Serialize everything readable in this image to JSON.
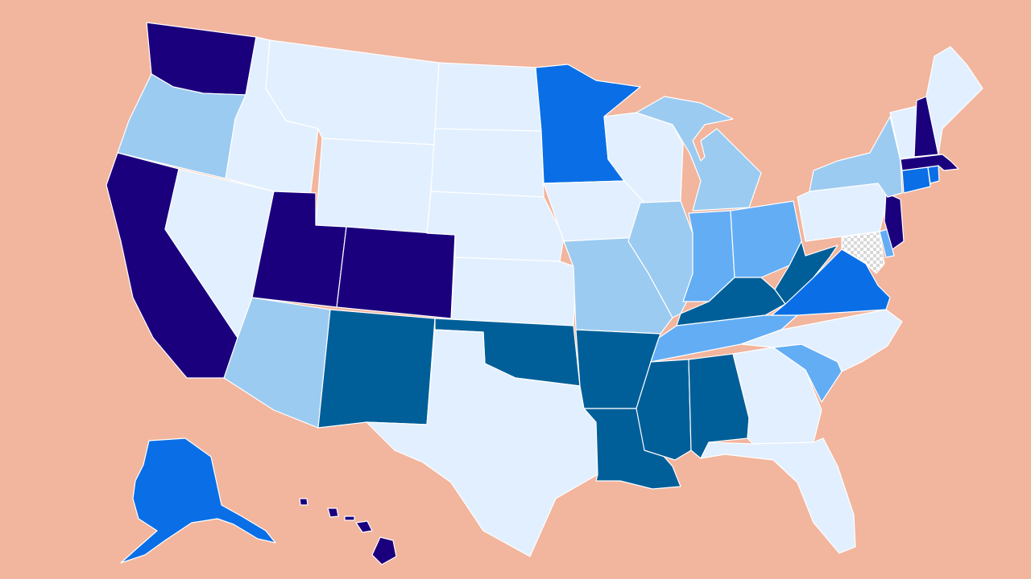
{
  "map": {
    "background_color": "#f2b59d",
    "border_color": "#ffffff",
    "palette": {
      "lightest": "#e2efff",
      "light": "#9ccbf1",
      "medium_light": "#63adf5",
      "medium": "#0a6fe6",
      "dark": "#005f99",
      "darkest": "#1b007e",
      "no_data": "#d8d8d8"
    },
    "states": [
      {
        "id": "WA",
        "fill": "#1b007e"
      },
      {
        "id": "OR",
        "fill": "#9ccbf1"
      },
      {
        "id": "CA",
        "fill": "#1b007e"
      },
      {
        "id": "NV",
        "fill": "#e2efff"
      },
      {
        "id": "ID",
        "fill": "#e2efff"
      },
      {
        "id": "MT",
        "fill": "#e2efff"
      },
      {
        "id": "WY",
        "fill": "#e2efff"
      },
      {
        "id": "UT",
        "fill": "#1b007e"
      },
      {
        "id": "CO",
        "fill": "#1b007e"
      },
      {
        "id": "AZ",
        "fill": "#9ccbf1"
      },
      {
        "id": "NM",
        "fill": "#005f99"
      },
      {
        "id": "ND",
        "fill": "#e2efff"
      },
      {
        "id": "SD",
        "fill": "#e2efff"
      },
      {
        "id": "NE",
        "fill": "#e2efff"
      },
      {
        "id": "KS",
        "fill": "#e2efff"
      },
      {
        "id": "OK",
        "fill": "#005f99"
      },
      {
        "id": "TX",
        "fill": "#e2efff"
      },
      {
        "id": "MN",
        "fill": "#0a6fe6"
      },
      {
        "id": "IA",
        "fill": "#e2efff"
      },
      {
        "id": "MO",
        "fill": "#9ccbf1"
      },
      {
        "id": "AR",
        "fill": "#005f99"
      },
      {
        "id": "LA",
        "fill": "#005f99"
      },
      {
        "id": "WI",
        "fill": "#e2efff"
      },
      {
        "id": "IL",
        "fill": "#9ccbf1"
      },
      {
        "id": "MI",
        "fill": "#9ccbf1"
      },
      {
        "id": "IN",
        "fill": "#63adf5"
      },
      {
        "id": "OH",
        "fill": "#63adf5"
      },
      {
        "id": "KY",
        "fill": "#005f99"
      },
      {
        "id": "TN",
        "fill": "#63adf5"
      },
      {
        "id": "MS",
        "fill": "#005f99"
      },
      {
        "id": "AL",
        "fill": "#005f99"
      },
      {
        "id": "GA",
        "fill": "#e2efff"
      },
      {
        "id": "FL",
        "fill": "#e2efff"
      },
      {
        "id": "SC",
        "fill": "#63adf5"
      },
      {
        "id": "NC",
        "fill": "#e2efff"
      },
      {
        "id": "VA",
        "fill": "#0a6fe6"
      },
      {
        "id": "WV",
        "fill": "#005f99"
      },
      {
        "id": "MD",
        "fill": "#d8d8d8"
      },
      {
        "id": "DE",
        "fill": "#63adf5"
      },
      {
        "id": "PA",
        "fill": "#e2efff"
      },
      {
        "id": "NJ",
        "fill": "#1b007e"
      },
      {
        "id": "NY",
        "fill": "#9ccbf1"
      },
      {
        "id": "CT",
        "fill": "#0a6fe6"
      },
      {
        "id": "RI",
        "fill": "#0a6fe6"
      },
      {
        "id": "MA",
        "fill": "#1b007e"
      },
      {
        "id": "VT",
        "fill": "#e2efff"
      },
      {
        "id": "NH",
        "fill": "#1b007e"
      },
      {
        "id": "ME",
        "fill": "#e2efff"
      },
      {
        "id": "AK",
        "fill": "#0a6fe6"
      },
      {
        "id": "HI",
        "fill": "#1b007e"
      }
    ]
  }
}
